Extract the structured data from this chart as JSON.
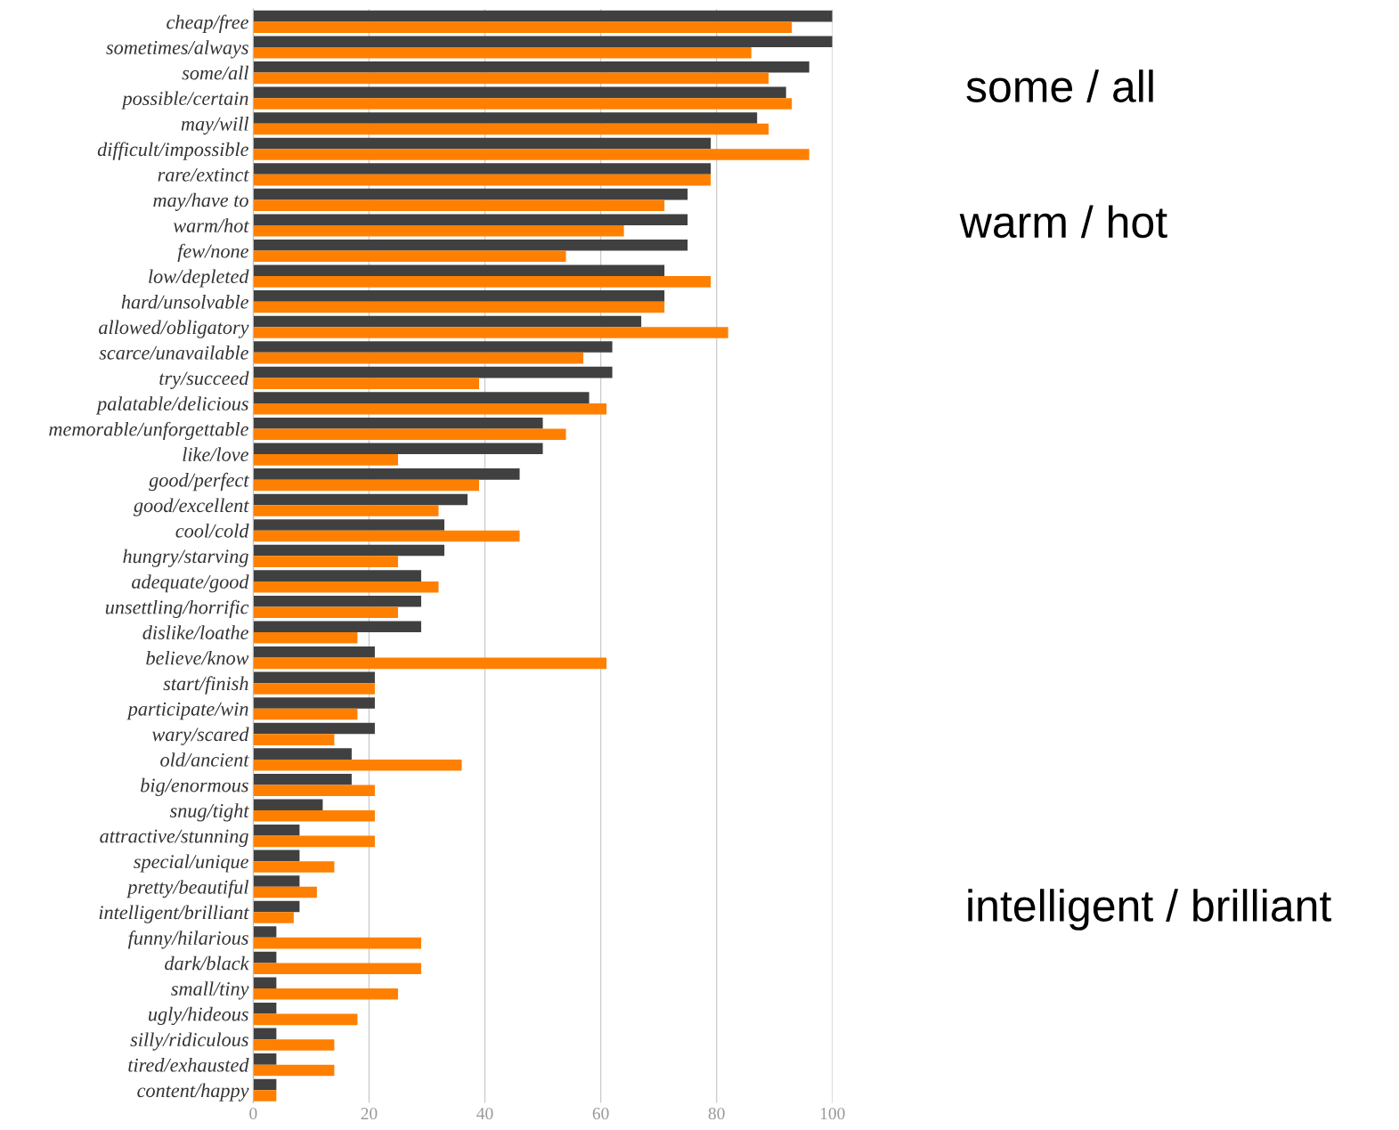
{
  "chart_data": {
    "type": "bar",
    "orientation": "horizontal",
    "categories": [
      "cheap/free",
      "sometimes/always",
      "some/all",
      "possible/certain",
      "may/will",
      "difficult/impossible",
      "rare/extinct",
      "may/have to",
      "warm/hot",
      "few/none",
      "low/depleted",
      "hard/unsolvable",
      "allowed/obligatory",
      "scarce/unavailable",
      "try/succeed",
      "palatable/delicious",
      "memorable/unforgettable",
      "like/love",
      "good/perfect",
      "good/excellent",
      "cool/cold",
      "hungry/starving",
      "adequate/good",
      "unsettling/horrific",
      "dislike/loathe",
      "believe/know",
      "start/finish",
      "participate/win",
      "wary/scared",
      "old/ancient",
      "big/enormous",
      "snug/tight",
      "attractive/stunning",
      "special/unique",
      "pretty/beautiful",
      "intelligent/brilliant",
      "funny/hilarious",
      "dark/black",
      "small/tiny",
      "ugly/hideous",
      "silly/ridiculous",
      "tired/exhausted",
      "content/happy"
    ],
    "series": [
      {
        "color": "#404040",
        "values": [
          100,
          100,
          96,
          92,
          87,
          79,
          79,
          75,
          75,
          75,
          71,
          71,
          67,
          62,
          62,
          58,
          50,
          50,
          46,
          37,
          33,
          33,
          29,
          29,
          29,
          21,
          21,
          21,
          21,
          17,
          17,
          12,
          8,
          8,
          8,
          8,
          4,
          4,
          4,
          4,
          4,
          4,
          4
        ]
      },
      {
        "color": "#ff8000",
        "values": [
          93,
          86,
          89,
          93,
          89,
          96,
          79,
          71,
          64,
          54,
          79,
          71,
          82,
          57,
          39,
          61,
          54,
          25,
          39,
          32,
          46,
          25,
          32,
          25,
          18,
          61,
          21,
          18,
          14,
          36,
          21,
          21,
          21,
          14,
          11,
          7,
          29,
          29,
          25,
          18,
          14,
          14,
          4
        ]
      }
    ],
    "xlim": [
      0,
      100
    ],
    "xticks": [
      0,
      20,
      40,
      60,
      80,
      100
    ],
    "grid": "x",
    "annotations": [
      "some / all",
      "warm / hot",
      "intelligent / brilliant"
    ]
  }
}
